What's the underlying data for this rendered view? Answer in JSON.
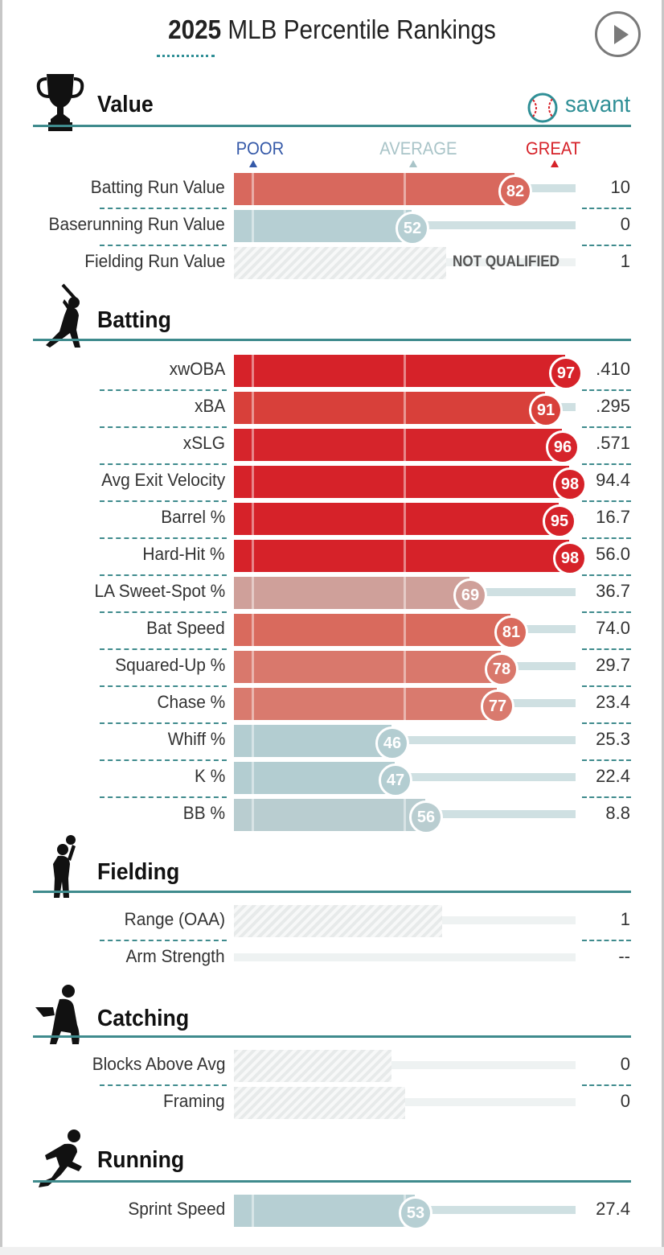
{
  "header": {
    "year": "2025",
    "title": "MLB Percentile Rankings",
    "play_button_icon": "play-icon"
  },
  "brand": {
    "name": "savant",
    "icon": "baseball-icon"
  },
  "legend": {
    "poor": "POOR",
    "average": "AVERAGE",
    "great": "GREAT"
  },
  "colors": {
    "accent": "#3f8b8d",
    "poor": "#3559a8",
    "average": "#a9c4c8",
    "great": "#d62229",
    "track": "#cfe0e2"
  },
  "sections": {
    "value": {
      "title": "Value",
      "icon": "trophy-icon",
      "rows": [
        {
          "label": "Batting Run Value",
          "value": "10",
          "percentile": 82,
          "circle": "82",
          "color": "#d8685d"
        },
        {
          "label": "Baserunning Run Value",
          "value": "0",
          "percentile": 52,
          "circle": "52",
          "color": "#b6cfd3"
        },
        {
          "label": "Fielding Run Value",
          "value": "1",
          "qualified": false,
          "hatch_fraction": 0.62,
          "note": "NOT QUALIFIED"
        }
      ]
    },
    "batting": {
      "title": "Batting",
      "icon": "batter-icon",
      "rows": [
        {
          "label": "xwOBA",
          "value": ".410",
          "percentile": 97,
          "circle": "97",
          "color": "#d62229"
        },
        {
          "label": "xBA",
          "value": ".295",
          "percentile": 91,
          "circle": "91",
          "color": "#d8403a"
        },
        {
          "label": "xSLG",
          "value": ".571",
          "percentile": 96,
          "circle": "96",
          "color": "#d6242b"
        },
        {
          "label": "Avg Exit Velocity",
          "value": "94.4",
          "percentile": 98,
          "circle": "98",
          "color": "#d62229"
        },
        {
          "label": "Barrel %",
          "value": "16.7",
          "percentile": 95,
          "circle": "95",
          "color": "#d62229"
        },
        {
          "label": "Hard-Hit %",
          "value": "56.0",
          "percentile": 98,
          "circle": "98",
          "color": "#d62229"
        },
        {
          "label": "LA Sweet-Spot %",
          "value": "36.7",
          "percentile": 69,
          "circle": "69",
          "color": "#cfa09a"
        },
        {
          "label": "Bat Speed",
          "value": "74.0",
          "percentile": 81,
          "circle": "81",
          "color": "#d96a5d"
        },
        {
          "label": "Squared-Up %",
          "value": "29.7",
          "percentile": 78,
          "circle": "78",
          "color": "#d9786c"
        },
        {
          "label": "Chase %",
          "value": "23.4",
          "percentile": 77,
          "circle": "77",
          "color": "#d97a6e"
        },
        {
          "label": "Whiff %",
          "value": "25.3",
          "percentile": 46,
          "circle": "46",
          "color": "#b3cdd1"
        },
        {
          "label": "K %",
          "value": "22.4",
          "percentile": 47,
          "circle": "47",
          "color": "#b3cdd1"
        },
        {
          "label": "BB %",
          "value": "8.8",
          "percentile": 56,
          "circle": "56",
          "color": "#b9cdd0"
        }
      ]
    },
    "fielding": {
      "title": "Fielding",
      "icon": "fielder-icon",
      "rows": [
        {
          "label": "Range (OAA)",
          "value": "1",
          "qualified": false,
          "hatch_fraction": 0.61
        },
        {
          "label": "Arm Strength",
          "value": "--",
          "qualified": false,
          "hatch_fraction": 0
        }
      ]
    },
    "catching": {
      "title": "Catching",
      "icon": "catcher-icon",
      "rows": [
        {
          "label": "Blocks Above Avg",
          "value": "0",
          "qualified": false,
          "hatch_fraction": 0.46
        },
        {
          "label": "Framing",
          "value": "0",
          "qualified": false,
          "hatch_fraction": 0.5
        }
      ]
    },
    "running": {
      "title": "Running",
      "icon": "runner-icon",
      "rows": [
        {
          "label": "Sprint Speed",
          "value": "27.4",
          "percentile": 53,
          "circle": "53",
          "color": "#b6cfd3"
        }
      ]
    }
  }
}
